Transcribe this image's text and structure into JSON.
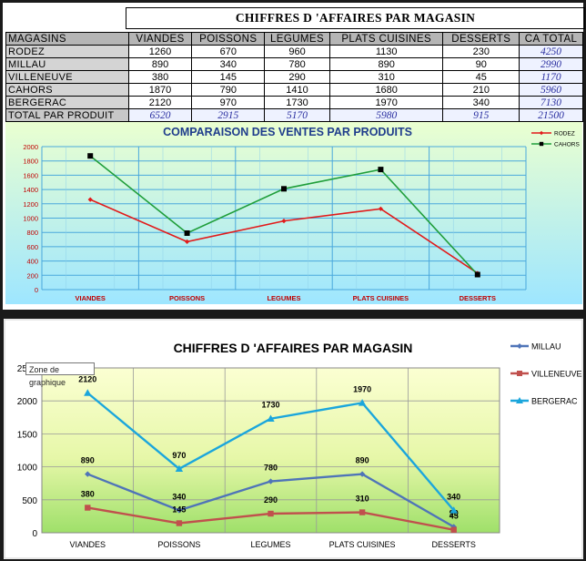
{
  "title": "CHIFFRES D 'AFFAIRES PAR MAGASIN",
  "table": {
    "headers": [
      "MAGASINS",
      "VIANDES",
      "POISSONS",
      "LEGUMES",
      "PLATS CUISINES",
      "DESSERTS",
      "CA TOTAL"
    ],
    "rows": [
      {
        "store": "RODEZ",
        "values": [
          "1260",
          "670",
          "960",
          "1130",
          "230"
        ],
        "total": "4250"
      },
      {
        "store": "MILLAU",
        "values": [
          "890",
          "340",
          "780",
          "890",
          "90"
        ],
        "total": "2990"
      },
      {
        "store": "VILLENEUVE",
        "values": [
          "380",
          "145",
          "290",
          "310",
          "45"
        ],
        "total": "1170"
      },
      {
        "store": "CAHORS",
        "values": [
          "1870",
          "790",
          "1410",
          "1680",
          "210"
        ],
        "total": "5960"
      },
      {
        "store": "BERGERAC",
        "values": [
          "2120",
          "970",
          "1730",
          "1970",
          "340"
        ],
        "total": "7130"
      }
    ],
    "total_row": {
      "label": "TOTAL PAR PRODUIT",
      "values": [
        "6520",
        "2915",
        "5170",
        "5980",
        "915"
      ],
      "total": "21500"
    }
  },
  "chart_data": [
    {
      "type": "line",
      "title": "COMPARAISON DES VENTES PAR PRODUITS",
      "categories": [
        "VIANDES",
        "POISSONS",
        "LEGUMES",
        "PLATS CUISINES",
        "DESSERTS"
      ],
      "series": [
        {
          "name": "RODEZ",
          "values": [
            1260,
            670,
            960,
            1130,
            230
          ],
          "color": "#e21a1a",
          "marker": "diamond"
        },
        {
          "name": "CAHORS",
          "values": [
            1870,
            790,
            1410,
            1680,
            210
          ],
          "color": "#1f9e3a",
          "marker": "square"
        }
      ],
      "ylim": [
        0,
        2000
      ],
      "yticks": [
        "0",
        "200",
        "400",
        "600",
        "800",
        "1000",
        "1200",
        "1400",
        "1600",
        "1800",
        "2000"
      ],
      "grid": true,
      "legend": "top-right"
    },
    {
      "type": "line",
      "title": "CHIFFRES D 'AFFAIRES PAR MAGASIN",
      "categories": [
        "VIANDES",
        "POISSONS",
        "LEGUMES",
        "PLATS CUISINES",
        "DESSERTS"
      ],
      "series": [
        {
          "name": "MILLAU",
          "values": [
            890,
            340,
            780,
            890,
            90
          ],
          "labels": [
            "890",
            "340",
            "780",
            "890",
            "90"
          ],
          "color": "#4f74b8",
          "marker": "diamond"
        },
        {
          "name": "VILLENEUVE",
          "values": [
            380,
            145,
            290,
            310,
            45
          ],
          "labels": [
            "380",
            "145",
            "290",
            "310",
            "45"
          ],
          "color": "#c0504d",
          "marker": "square"
        },
        {
          "name": "BERGERAC",
          "values": [
            2120,
            970,
            1730,
            1970,
            340
          ],
          "labels": [
            "2120",
            "970",
            "1730",
            "1970",
            "340"
          ],
          "color": "#1ba6dc",
          "marker": "triangle"
        }
      ],
      "ylim": [
        0,
        2500
      ],
      "yticks": [
        "0",
        "500",
        "1000",
        "1500",
        "2000",
        "2500"
      ],
      "grid": true,
      "legend": "right"
    }
  ],
  "tooltip": "Zone de graphique"
}
